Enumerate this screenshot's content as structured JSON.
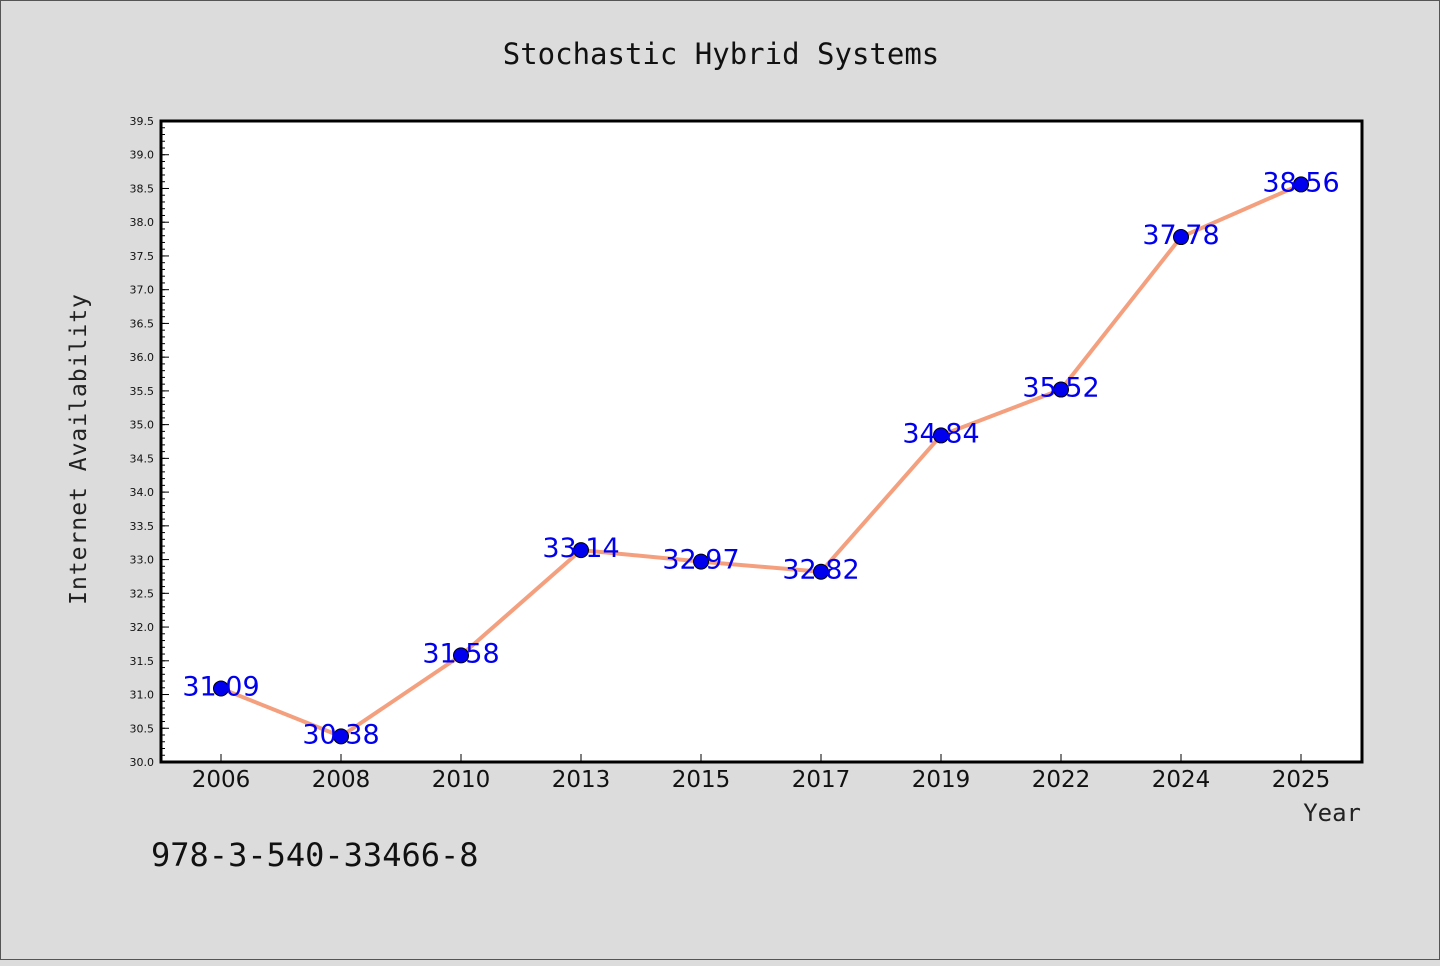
{
  "chart_data": {
    "type": "line",
    "title": "Stochastic Hybrid Systems",
    "xlabel": "Year",
    "ylabel": "Internet Availability",
    "categories": [
      "2006",
      "2008",
      "2010",
      "2013",
      "2015",
      "2017",
      "2019",
      "2022",
      "2024",
      "2025"
    ],
    "series": [
      {
        "values": [
          31.09,
          30.38,
          31.58,
          33.14,
          32.97,
          32.82,
          34.84,
          35.52,
          37.78,
          38.56
        ],
        "line_color": "#f4a07e",
        "marker_color": "#0000ee"
      }
    ],
    "data_labels": [
      "31.09",
      "30.38",
      "31.58",
      "33.14",
      "32.97",
      "32.82",
      "34.84",
      "35.52",
      "37.78",
      "38.56"
    ],
    "ylim": [
      30.0,
      39.5
    ],
    "yticks": [
      "30.0",
      "30.5",
      "31.0",
      "31.5",
      "32.0",
      "32.5",
      "33.0",
      "33.5",
      "34.0",
      "34.5",
      "35.0",
      "35.5",
      "36.0",
      "36.5",
      "37.0",
      "37.5",
      "38.0",
      "38.5",
      "39.0",
      "39.5"
    ],
    "grid": false,
    "legend": "none"
  },
  "footer_text": "978-3-540-33466-8"
}
